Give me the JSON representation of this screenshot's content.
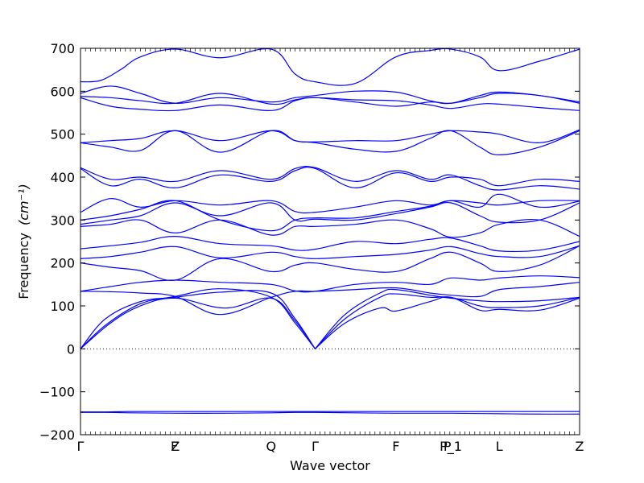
{
  "chart_data": {
    "type": "line",
    "title": "",
    "xlabel": "Wave vector",
    "ylabel": "Frequency",
    "ylabel_unit": "(cm⁻¹)",
    "ylim": [
      -200,
      700
    ],
    "yticks": [
      -200,
      -100,
      0,
      100,
      200,
      300,
      400,
      500,
      600,
      700
    ],
    "ytick_labels": [
      "−200",
      "−100",
      "0",
      "100",
      "200",
      "300",
      "400",
      "500",
      "600",
      "700"
    ],
    "xlim": [
      0,
      1
    ],
    "high_symmetry_points": [
      {
        "x": 0.0,
        "label": "Γ"
      },
      {
        "x": 0.188,
        "label": "F"
      },
      {
        "x": 0.19,
        "label": "Z"
      },
      {
        "x": 0.382,
        "label": "Q"
      },
      {
        "x": 0.47,
        "label": "Γ"
      },
      {
        "x": 0.632,
        "label": "F"
      },
      {
        "x": 0.735,
        "label": "P"
      },
      {
        "x": 0.742,
        "label": "P_1"
      },
      {
        "x": 0.839,
        "label": "L"
      },
      {
        "x": 1.0,
        "label": "Z"
      }
    ],
    "zero_line": true,
    "line_color": "#0000ff",
    "series": [
      {
        "x": [
          0,
          0.05,
          0.1,
          0.19,
          0.3,
          0.382,
          0.43,
          0.47,
          0.55,
          0.632,
          0.74,
          0.839,
          0.92,
          1.0
        ],
        "values": [
          -147,
          -147,
          -146,
          -146,
          -146,
          -146,
          -146,
          -146,
          -146,
          -146,
          -146,
          -146,
          -146,
          -146
        ]
      },
      {
        "x": [
          0,
          0.05,
          0.1,
          0.19,
          0.3,
          0.382,
          0.43,
          0.47,
          0.55,
          0.632,
          0.74,
          0.839,
          0.92,
          1.0
        ],
        "values": [
          -148,
          -148,
          -149,
          -150,
          -150,
          -149,
          -148,
          -148,
          -149,
          -150,
          -150,
          -151,
          -152,
          -152
        ]
      },
      {
        "x": [
          0,
          0.05,
          0.12,
          0.19,
          0.28,
          0.382,
          0.43,
          0.47
        ],
        "values": [
          0,
          70,
          110,
          120,
          132,
          130,
          70,
          0
        ]
      },
      {
        "x": [
          0,
          0.05,
          0.12,
          0.19,
          0.28,
          0.382,
          0.43,
          0.47
        ],
        "values": [
          0,
          55,
          105,
          122,
          140,
          120,
          60,
          0
        ]
      },
      {
        "x": [
          0,
          0.06,
          0.12,
          0.19,
          0.29,
          0.382,
          0.43,
          0.47
        ],
        "values": [
          0,
          60,
          100,
          118,
          95,
          118,
          65,
          0
        ]
      },
      {
        "x": [
          0.47,
          0.53,
          0.6,
          0.632,
          0.7,
          0.742,
          0.8,
          0.839,
          0.92,
          1.0
        ],
        "values": [
          0,
          80,
          130,
          138,
          125,
          118,
          112,
          110,
          112,
          120
        ]
      },
      {
        "x": [
          0.47,
          0.53,
          0.6,
          0.632,
          0.7,
          0.742,
          0.8,
          0.839,
          0.92,
          1.0
        ],
        "values": [
          0,
          70,
          120,
          128,
          120,
          120,
          100,
          96,
          100,
          120
        ]
      },
      {
        "x": [
          0.47,
          0.53,
          0.6,
          0.632,
          0.7,
          0.742,
          0.8,
          0.839,
          0.92,
          1.0
        ],
        "values": [
          0,
          60,
          95,
          88,
          110,
          120,
          90,
          92,
          90,
          118
        ]
      },
      {
        "x": [
          0,
          0.06,
          0.12,
          0.19,
          0.28,
          0.382,
          0.43,
          0.47,
          0.55,
          0.632,
          0.7,
          0.742,
          0.8,
          0.839,
          0.92,
          1.0
        ],
        "values": [
          134,
          133,
          130,
          122,
          80,
          120,
          134,
          134,
          138,
          142,
          130,
          125,
          122,
          138,
          145,
          155
        ]
      },
      {
        "x": [
          0,
          0.06,
          0.12,
          0.19,
          0.28,
          0.382,
          0.43,
          0.47,
          0.55,
          0.632,
          0.7,
          0.742,
          0.8,
          0.839,
          0.92,
          1.0
        ],
        "values": [
          134,
          145,
          155,
          160,
          155,
          150,
          135,
          134,
          150,
          155,
          150,
          165,
          160,
          165,
          170,
          166
        ]
      },
      {
        "x": [
          0,
          0.06,
          0.12,
          0.19,
          0.28,
          0.382,
          0.43,
          0.47,
          0.55,
          0.632,
          0.7,
          0.742,
          0.8,
          0.839,
          0.92,
          1.0
        ],
        "values": [
          200,
          190,
          182,
          160,
          210,
          180,
          195,
          200,
          185,
          180,
          210,
          225,
          200,
          180,
          195,
          240
        ]
      },
      {
        "x": [
          0,
          0.06,
          0.12,
          0.19,
          0.28,
          0.382,
          0.43,
          0.47,
          0.55,
          0.632,
          0.7,
          0.742,
          0.8,
          0.839,
          0.92,
          1.0
        ],
        "values": [
          210,
          215,
          225,
          238,
          212,
          225,
          215,
          210,
          215,
          220,
          230,
          238,
          222,
          215,
          215,
          240
        ]
      },
      {
        "x": [
          0,
          0.06,
          0.12,
          0.19,
          0.28,
          0.382,
          0.43,
          0.47,
          0.55,
          0.632,
          0.7,
          0.742,
          0.8,
          0.839,
          0.92,
          1.0
        ],
        "values": [
          233,
          240,
          248,
          262,
          245,
          240,
          230,
          232,
          250,
          245,
          255,
          258,
          240,
          228,
          230,
          250
        ]
      },
      {
        "x": [
          0,
          0.06,
          0.12,
          0.19,
          0.28,
          0.382,
          0.43,
          0.47,
          0.55,
          0.632,
          0.7,
          0.742,
          0.8,
          0.839,
          0.92,
          1.0
        ],
        "values": [
          285,
          290,
          300,
          270,
          300,
          265,
          285,
          285,
          290,
          300,
          280,
          260,
          270,
          290,
          300,
          262
        ]
      },
      {
        "x": [
          0,
          0.06,
          0.12,
          0.19,
          0.28,
          0.382,
          0.43,
          0.47,
          0.55,
          0.632,
          0.7,
          0.742,
          0.8,
          0.839,
          0.92,
          1.0
        ],
        "values": [
          290,
          300,
          310,
          340,
          310,
          340,
          300,
          302,
          300,
          315,
          330,
          340,
          310,
          295,
          300,
          340
        ]
      },
      {
        "x": [
          0,
          0.06,
          0.12,
          0.19,
          0.28,
          0.382,
          0.43,
          0.47,
          0.55,
          0.632,
          0.7,
          0.742,
          0.8,
          0.839,
          0.92,
          1.0
        ],
        "values": [
          300,
          310,
          325,
          345,
          300,
          275,
          300,
          305,
          305,
          320,
          332,
          345,
          330,
          360,
          330,
          344
        ]
      },
      {
        "x": [
          0,
          0.06,
          0.12,
          0.19,
          0.28,
          0.382,
          0.43,
          0.47,
          0.55,
          0.632,
          0.7,
          0.742,
          0.8,
          0.839,
          0.92,
          1.0
        ],
        "values": [
          318,
          350,
          330,
          345,
          335,
          345,
          320,
          318,
          330,
          345,
          335,
          345,
          340,
          335,
          345,
          345
        ]
      },
      {
        "x": [
          0,
          0.06,
          0.12,
          0.19,
          0.28,
          0.382,
          0.43,
          0.47,
          0.55,
          0.632,
          0.7,
          0.742,
          0.8,
          0.839,
          0.92,
          1.0
        ],
        "values": [
          420,
          380,
          395,
          375,
          405,
          390,
          415,
          420,
          375,
          410,
          390,
          400,
          395,
          380,
          395,
          390
        ]
      },
      {
        "x": [
          0,
          0.06,
          0.12,
          0.19,
          0.28,
          0.382,
          0.43,
          0.47,
          0.55,
          0.632,
          0.7,
          0.742,
          0.8,
          0.839,
          0.92,
          1.0
        ],
        "values": [
          422,
          395,
          400,
          390,
          415,
          395,
          420,
          422,
          390,
          415,
          395,
          405,
          380,
          370,
          380,
          372
        ]
      },
      {
        "x": [
          0,
          0.06,
          0.12,
          0.19,
          0.28,
          0.382,
          0.43,
          0.47,
          0.55,
          0.632,
          0.7,
          0.742,
          0.8,
          0.839,
          0.92,
          1.0
        ],
        "values": [
          480,
          470,
          462,
          508,
          458,
          508,
          485,
          480,
          465,
          460,
          490,
          508,
          470,
          452,
          470,
          508
        ]
      },
      {
        "x": [
          0,
          0.06,
          0.12,
          0.19,
          0.28,
          0.382,
          0.43,
          0.47,
          0.55,
          0.632,
          0.7,
          0.742,
          0.8,
          0.839,
          0.92,
          1.0
        ],
        "values": [
          480,
          485,
          490,
          508,
          485,
          508,
          485,
          482,
          485,
          485,
          500,
          508,
          505,
          500,
          480,
          510
        ]
      },
      {
        "x": [
          0,
          0.06,
          0.12,
          0.19,
          0.28,
          0.382,
          0.43,
          0.47,
          0.55,
          0.632,
          0.7,
          0.742,
          0.8,
          0.839,
          0.92,
          1.0
        ],
        "values": [
          588,
          585,
          578,
          572,
          595,
          570,
          580,
          585,
          575,
          565,
          575,
          572,
          585,
          595,
          590,
          572
        ]
      },
      {
        "x": [
          0,
          0.06,
          0.12,
          0.19,
          0.28,
          0.382,
          0.43,
          0.47,
          0.55,
          0.632,
          0.7,
          0.742,
          0.8,
          0.839,
          0.92,
          1.0
        ],
        "values": [
          585,
          565,
          558,
          555,
          568,
          555,
          578,
          585,
          580,
          578,
          568,
          560,
          570,
          570,
          562,
          555
        ]
      },
      {
        "x": [
          0,
          0.06,
          0.12,
          0.19,
          0.28,
          0.382,
          0.43,
          0.47,
          0.55,
          0.632,
          0.7,
          0.742,
          0.8,
          0.839,
          0.92,
          1.0
        ],
        "values": [
          595,
          612,
          595,
          572,
          585,
          575,
          585,
          590,
          600,
          598,
          578,
          572,
          590,
          598,
          590,
          575
        ]
      },
      {
        "x": [
          0,
          0.04,
          0.08,
          0.12,
          0.19,
          0.28,
          0.382,
          0.43,
          0.47,
          0.55,
          0.632,
          0.7,
          0.742,
          0.8,
          0.839,
          0.92,
          1.0
        ],
        "values": [
          622,
          625,
          650,
          680,
          698,
          678,
          698,
          640,
          622,
          618,
          680,
          695,
          698,
          680,
          648,
          670,
          698
        ]
      }
    ]
  }
}
